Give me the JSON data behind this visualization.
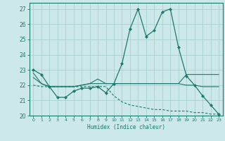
{
  "xlabel": "Humidex (Indice chaleur)",
  "xlim": [
    -0.5,
    23.5
  ],
  "ylim": [
    20,
    27.4
  ],
  "yticks": [
    20,
    21,
    22,
    23,
    24,
    25,
    26,
    27
  ],
  "xticks": [
    0,
    1,
    2,
    3,
    4,
    5,
    6,
    7,
    8,
    9,
    10,
    11,
    12,
    13,
    14,
    15,
    16,
    17,
    18,
    19,
    20,
    21,
    22,
    23
  ],
  "bg_color": "#cce8e8",
  "grid_color": "#aad0d0",
  "line_color": "#1a7a6e",
  "line1": [
    23.0,
    22.7,
    21.9,
    21.2,
    21.2,
    21.6,
    21.8,
    21.8,
    21.9,
    21.5,
    22.1,
    23.4,
    25.7,
    27.0,
    25.2,
    25.6,
    26.8,
    27.0,
    24.5,
    22.6,
    22.0,
    21.3,
    20.7,
    20.1
  ],
  "line2": [
    22.8,
    22.1,
    21.9,
    21.9,
    21.9,
    21.9,
    22.0,
    22.1,
    22.1,
    22.1,
    22.1,
    22.1,
    22.1,
    22.1,
    22.1,
    22.1,
    22.1,
    22.1,
    22.1,
    22.7,
    22.7,
    22.7,
    22.7,
    22.7
  ],
  "line3": [
    22.5,
    22.1,
    21.9,
    21.9,
    21.9,
    21.9,
    22.0,
    22.1,
    22.4,
    22.1,
    22.1,
    22.1,
    22.1,
    22.1,
    22.1,
    22.1,
    22.1,
    22.1,
    22.1,
    22.0,
    22.0,
    21.9,
    21.9,
    21.9
  ],
  "line4": [
    22.0,
    21.9,
    21.9,
    21.9,
    21.9,
    21.9,
    21.9,
    21.9,
    21.9,
    21.9,
    21.3,
    20.9,
    20.7,
    20.6,
    20.5,
    20.4,
    20.4,
    20.3,
    20.3,
    20.3,
    20.2,
    20.2,
    20.1,
    20.1
  ]
}
